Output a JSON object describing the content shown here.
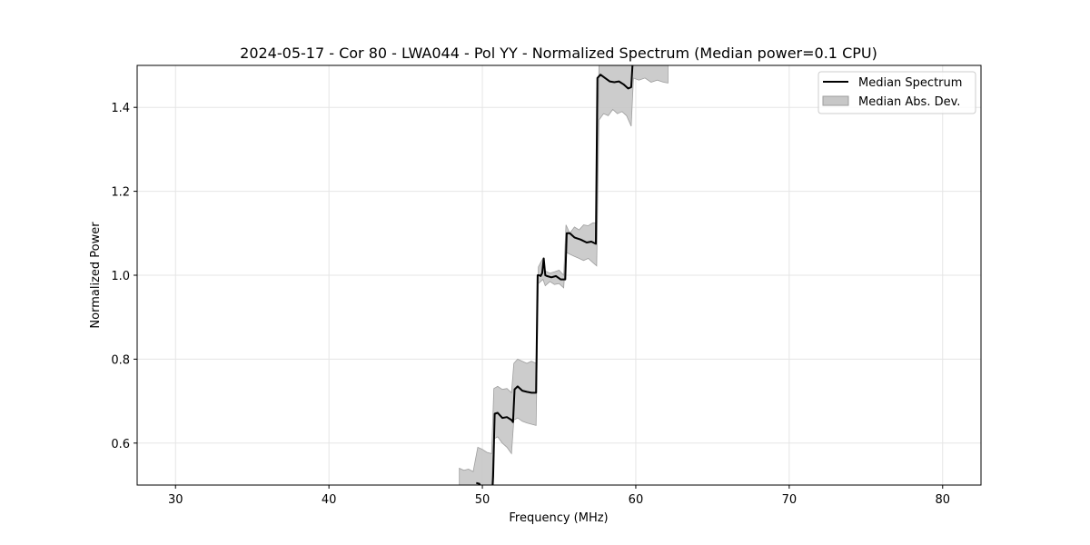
{
  "chart_data": {
    "type": "line",
    "title": "2024-05-17 - Cor 80 - LWA044 - Pol YY - Normalized Spectrum (Median power=0.1 CPU)",
    "xlabel": "Frequency (MHz)",
    "ylabel": "Normalized Power",
    "xlim": [
      27.5,
      82.5
    ],
    "ylim": [
      0.5,
      1.5
    ],
    "xticks": [
      30,
      40,
      50,
      60,
      70,
      80
    ],
    "yticks": [
      0.6,
      0.8,
      1.0,
      1.2,
      1.4
    ],
    "xtick_labels": [
      "30",
      "40",
      "50",
      "60",
      "70",
      "80"
    ],
    "ytick_labels": [
      "0.6",
      "0.8",
      "1.0",
      "1.2",
      "1.4"
    ],
    "grid": true,
    "legend_position": "top-right",
    "colors": {
      "median": "#000000",
      "mad_fill": "#c7c7c7",
      "mad_edge": "#9e9e9e",
      "grid": "#e5e5e5"
    },
    "series": [
      {
        "name": "Median Spectrum",
        "x": [
          49.6,
          49.8,
          50.0,
          50.6,
          50.7,
          50.8,
          51.0,
          51.3,
          51.6,
          51.9,
          52.0,
          52.1,
          52.3,
          52.6,
          52.9,
          53.2,
          53.5,
          53.6,
          53.7,
          53.8,
          53.9,
          54.0,
          54.1,
          54.2,
          54.5,
          54.8,
          55.1,
          55.4,
          55.5,
          55.7,
          56.0,
          56.4,
          56.8,
          57.1,
          57.4,
          57.5,
          57.7,
          58.0,
          58.3,
          58.6,
          58.9,
          59.2,
          59.5,
          59.7,
          59.8
        ],
        "y": [
          0.505,
          0.503,
          0.49,
          0.45,
          0.52,
          0.67,
          0.672,
          0.66,
          0.662,
          0.655,
          0.65,
          0.728,
          0.735,
          0.725,
          0.722,
          0.72,
          0.72,
          1.0,
          1.0,
          0.998,
          1.005,
          1.04,
          1.0,
          0.998,
          0.995,
          0.998,
          0.99,
          0.99,
          1.1,
          1.1,
          1.09,
          1.085,
          1.078,
          1.08,
          1.075,
          1.47,
          1.478,
          1.47,
          1.462,
          1.46,
          1.462,
          1.455,
          1.445,
          1.448,
          1.51
        ]
      },
      {
        "name": "Median Abs. Dev.",
        "x": [
          48.5,
          48.8,
          49.1,
          49.4,
          49.7,
          50.0,
          50.3,
          50.6,
          50.75,
          51.0,
          51.3,
          51.6,
          51.9,
          52.05,
          52.3,
          52.6,
          52.9,
          53.2,
          53.5,
          53.65,
          53.8,
          53.95,
          54.1,
          54.4,
          54.7,
          55.0,
          55.3,
          55.45,
          55.7,
          56.0,
          56.3,
          56.6,
          56.9,
          57.2,
          57.45,
          57.6,
          57.9,
          58.2,
          58.5,
          58.8,
          59.1,
          59.4,
          59.7,
          59.85,
          60.2,
          60.6,
          61.0,
          61.4,
          61.8,
          62.1
        ],
        "upper": [
          0.54,
          0.535,
          0.538,
          0.532,
          0.59,
          0.585,
          0.578,
          0.575,
          0.73,
          0.735,
          0.728,
          0.73,
          0.72,
          0.79,
          0.8,
          0.795,
          0.79,
          0.795,
          0.79,
          1.02,
          1.03,
          1.04,
          1.01,
          1.005,
          1.008,
          1.012,
          1.0,
          1.12,
          1.1,
          1.115,
          1.108,
          1.12,
          1.118,
          1.125,
          1.125,
          1.5,
          1.5,
          1.5,
          1.5,
          1.5,
          1.5,
          1.5,
          1.5,
          1.5,
          1.5,
          1.5,
          1.5,
          1.5,
          1.5,
          1.5
        ],
        "lower": [
          0.5,
          0.5,
          0.5,
          0.5,
          0.5,
          0.5,
          0.5,
          0.5,
          0.61,
          0.615,
          0.6,
          0.59,
          0.575,
          0.655,
          0.66,
          0.652,
          0.648,
          0.645,
          0.642,
          0.98,
          0.985,
          0.99,
          0.975,
          0.985,
          0.978,
          0.98,
          0.97,
          1.055,
          1.05,
          1.045,
          1.04,
          1.035,
          1.04,
          1.03,
          1.022,
          1.37,
          1.385,
          1.38,
          1.395,
          1.385,
          1.39,
          1.38,
          1.355,
          1.47,
          1.465,
          1.47,
          1.46,
          1.465,
          1.46,
          1.458
        ]
      }
    ],
    "legend": [
      "Median Spectrum",
      "Median Abs. Dev."
    ]
  }
}
